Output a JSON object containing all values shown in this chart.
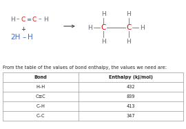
{
  "bg_color": "#ffffff",
  "blue": "#4169c8",
  "red": "#cc1111",
  "black": "#222222",
  "gray": "#666666",
  "line_gray": "#888888",
  "arrow_color": "#555555",
  "caption": "From the table of the values of bond enthalpy, the values we need are:",
  "table_header": [
    "Bond",
    "Enthalpy (kJ/mol)"
  ],
  "table_rows": [
    [
      "H–H",
      "432"
    ],
    [
      "C≡C",
      "839"
    ],
    [
      "C–H",
      "413"
    ],
    [
      "C–C",
      "347"
    ]
  ],
  "fs_mol": 6.5,
  "fs_caption": 4.8,
  "fs_table": 4.8
}
